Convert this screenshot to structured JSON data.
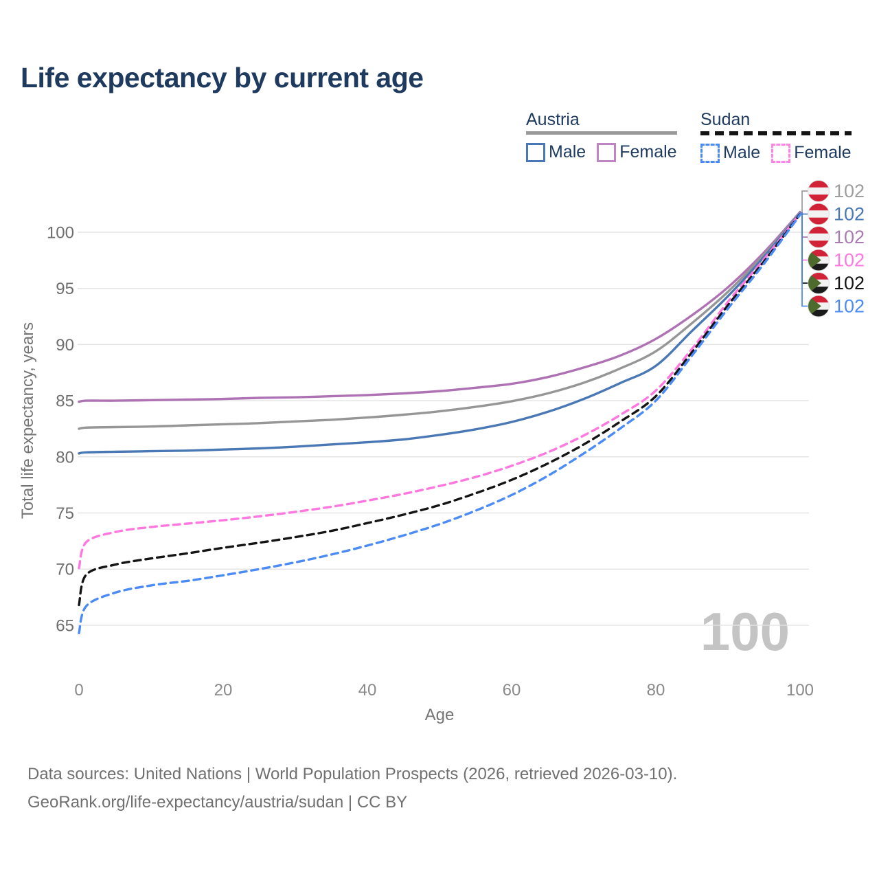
{
  "title": "Life expectancy by current age",
  "legend": {
    "austria": {
      "label": "Austria",
      "male": "Male",
      "female": "Female"
    },
    "sudan": {
      "label": "Sudan",
      "male": "Male",
      "female": "Female"
    }
  },
  "footer": {
    "line1": "Data sources: United Nations | World Population Prospects (2026, retrieved 2026-03-10).",
    "line2": "GeoRank.org/life-expectancy/austria/sudan | CC BY"
  },
  "colors": {
    "austria_male": "#4a78b5",
    "austria_female": "#ae72b4",
    "austria_total": "#969696",
    "sudan_male": "#4b8bf5",
    "sudan_female": "#ff78e0",
    "sudan_total": "#141414",
    "title_text": "#1e3a5f",
    "axis_text": "#757575",
    "gridline": "#e4e4e4",
    "watermark": "#c4c4c4"
  },
  "chart_data": {
    "type": "line",
    "title": "Life expectancy by current age",
    "xlabel": "Age",
    "ylabel": "Total life expectancy, years",
    "xlim": [
      0,
      100
    ],
    "ylim": [
      63,
      103
    ],
    "xticks": [
      0,
      20,
      40,
      60,
      80,
      100
    ],
    "yticks": [
      65,
      70,
      75,
      80,
      85,
      90,
      95,
      100
    ],
    "grid": "horizontal",
    "legend_position": "top-right",
    "age_annotation": "100",
    "x": [
      0,
      1,
      5,
      10,
      15,
      20,
      25,
      30,
      35,
      40,
      45,
      50,
      55,
      60,
      65,
      70,
      75,
      80,
      85,
      90,
      95,
      100
    ],
    "series": [
      {
        "name": "Austria Female",
        "id": "austria-female",
        "color": "#ae72b4",
        "dash": false,
        "values": [
          84.9,
          85.0,
          85.0,
          85.05,
          85.1,
          85.15,
          85.25,
          85.3,
          85.4,
          85.5,
          85.65,
          85.85,
          86.15,
          86.5,
          87.1,
          87.95,
          89.0,
          90.5,
          92.6,
          95.1,
          98.2,
          101.8
        ]
      },
      {
        "name": "Austria Total",
        "id": "austria-total",
        "color": "#969696",
        "dash": false,
        "values": [
          82.5,
          82.6,
          82.65,
          82.7,
          82.8,
          82.9,
          83.0,
          83.15,
          83.3,
          83.5,
          83.75,
          84.05,
          84.45,
          84.95,
          85.65,
          86.6,
          87.85,
          89.4,
          91.9,
          94.7,
          98.0,
          101.75
        ]
      },
      {
        "name": "Austria Male",
        "id": "austria-male",
        "color": "#4a78b5",
        "dash": false,
        "values": [
          80.3,
          80.4,
          80.45,
          80.5,
          80.55,
          80.65,
          80.75,
          80.9,
          81.1,
          81.3,
          81.55,
          81.95,
          82.45,
          83.1,
          84.0,
          85.15,
          86.55,
          88.1,
          91.2,
          94.3,
          97.8,
          101.7
        ]
      },
      {
        "name": "Sudan Female",
        "id": "sudan-female",
        "color": "#ff78e0",
        "dash": true,
        "values": [
          70.1,
          72.4,
          73.3,
          73.75,
          74.05,
          74.35,
          74.7,
          75.1,
          75.55,
          76.1,
          76.7,
          77.4,
          78.2,
          79.2,
          80.4,
          81.9,
          83.7,
          85.9,
          89.6,
          93.8,
          97.6,
          101.65
        ]
      },
      {
        "name": "Sudan Total",
        "id": "sudan-total",
        "color": "#141414",
        "dash": true,
        "values": [
          66.8,
          69.5,
          70.4,
          70.95,
          71.4,
          71.9,
          72.35,
          72.85,
          73.4,
          74.1,
          74.85,
          75.7,
          76.75,
          77.95,
          79.4,
          81.1,
          83.1,
          85.4,
          89.3,
          93.5,
          97.4,
          101.6
        ]
      },
      {
        "name": "Sudan Male",
        "id": "sudan-male",
        "color": "#4b8bf5",
        "dash": true,
        "values": [
          64.3,
          66.7,
          67.9,
          68.55,
          68.95,
          69.45,
          70.0,
          70.6,
          71.3,
          72.1,
          73.0,
          74.0,
          75.2,
          76.6,
          78.3,
          80.3,
          82.5,
          85.0,
          89.0,
          93.2,
          97.2,
          101.55
        ]
      }
    ],
    "end_labels": [
      {
        "flag": "austria",
        "series": "Austria Total",
        "value": "102",
        "color": "#9e9e9e"
      },
      {
        "flag": "austria",
        "series": "Austria Male",
        "value": "102",
        "color": "#4a78b5"
      },
      {
        "flag": "austria",
        "series": "Austria Female",
        "value": "102",
        "color": "#a87cb0"
      },
      {
        "flag": "sudan",
        "series": "Sudan Female",
        "value": "102",
        "color": "#ff78e0"
      },
      {
        "flag": "sudan",
        "series": "Sudan Total",
        "value": "102",
        "color": "#141414"
      },
      {
        "flag": "sudan",
        "series": "Sudan Male",
        "value": "102",
        "color": "#4b8bf5"
      }
    ]
  }
}
